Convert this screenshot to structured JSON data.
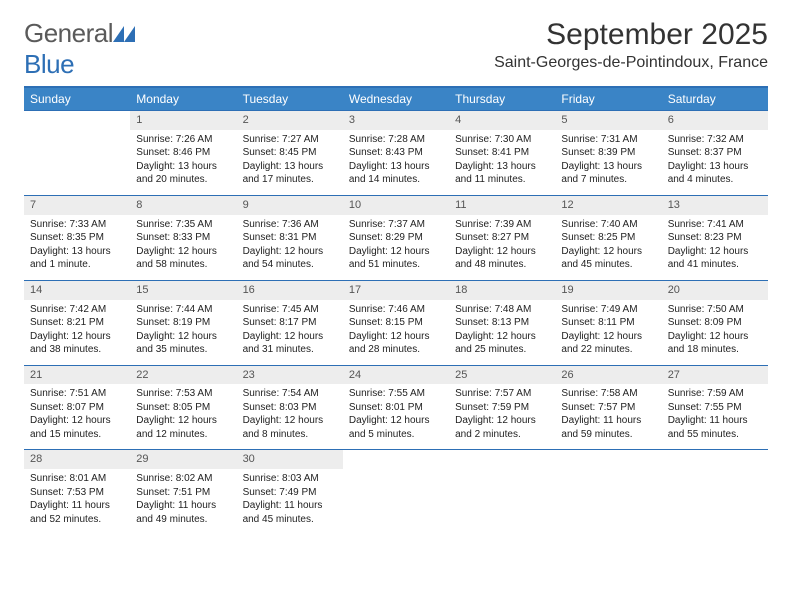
{
  "brand": {
    "part1": "General",
    "part2": "Blue"
  },
  "title": "September 2025",
  "location": "Saint-Georges-de-Pointindoux, France",
  "colors": {
    "accent": "#3a84c6",
    "accent_border": "#2d6fb5",
    "header_text": "#ffffff",
    "daynum_bg": "#ededed",
    "text": "#222222",
    "logo_gray": "#5a5a5a"
  },
  "weekdays": [
    "Sunday",
    "Monday",
    "Tuesday",
    "Wednesday",
    "Thursday",
    "Friday",
    "Saturday"
  ],
  "weeks": [
    [
      null,
      {
        "n": "1",
        "sr": "Sunrise: 7:26 AM",
        "ss": "Sunset: 8:46 PM",
        "d1": "Daylight: 13 hours",
        "d2": "and 20 minutes."
      },
      {
        "n": "2",
        "sr": "Sunrise: 7:27 AM",
        "ss": "Sunset: 8:45 PM",
        "d1": "Daylight: 13 hours",
        "d2": "and 17 minutes."
      },
      {
        "n": "3",
        "sr": "Sunrise: 7:28 AM",
        "ss": "Sunset: 8:43 PM",
        "d1": "Daylight: 13 hours",
        "d2": "and 14 minutes."
      },
      {
        "n": "4",
        "sr": "Sunrise: 7:30 AM",
        "ss": "Sunset: 8:41 PM",
        "d1": "Daylight: 13 hours",
        "d2": "and 11 minutes."
      },
      {
        "n": "5",
        "sr": "Sunrise: 7:31 AM",
        "ss": "Sunset: 8:39 PM",
        "d1": "Daylight: 13 hours",
        "d2": "and 7 minutes."
      },
      {
        "n": "6",
        "sr": "Sunrise: 7:32 AM",
        "ss": "Sunset: 8:37 PM",
        "d1": "Daylight: 13 hours",
        "d2": "and 4 minutes."
      }
    ],
    [
      {
        "n": "7",
        "sr": "Sunrise: 7:33 AM",
        "ss": "Sunset: 8:35 PM",
        "d1": "Daylight: 13 hours",
        "d2": "and 1 minute."
      },
      {
        "n": "8",
        "sr": "Sunrise: 7:35 AM",
        "ss": "Sunset: 8:33 PM",
        "d1": "Daylight: 12 hours",
        "d2": "and 58 minutes."
      },
      {
        "n": "9",
        "sr": "Sunrise: 7:36 AM",
        "ss": "Sunset: 8:31 PM",
        "d1": "Daylight: 12 hours",
        "d2": "and 54 minutes."
      },
      {
        "n": "10",
        "sr": "Sunrise: 7:37 AM",
        "ss": "Sunset: 8:29 PM",
        "d1": "Daylight: 12 hours",
        "d2": "and 51 minutes."
      },
      {
        "n": "11",
        "sr": "Sunrise: 7:39 AM",
        "ss": "Sunset: 8:27 PM",
        "d1": "Daylight: 12 hours",
        "d2": "and 48 minutes."
      },
      {
        "n": "12",
        "sr": "Sunrise: 7:40 AM",
        "ss": "Sunset: 8:25 PM",
        "d1": "Daylight: 12 hours",
        "d2": "and 45 minutes."
      },
      {
        "n": "13",
        "sr": "Sunrise: 7:41 AM",
        "ss": "Sunset: 8:23 PM",
        "d1": "Daylight: 12 hours",
        "d2": "and 41 minutes."
      }
    ],
    [
      {
        "n": "14",
        "sr": "Sunrise: 7:42 AM",
        "ss": "Sunset: 8:21 PM",
        "d1": "Daylight: 12 hours",
        "d2": "and 38 minutes."
      },
      {
        "n": "15",
        "sr": "Sunrise: 7:44 AM",
        "ss": "Sunset: 8:19 PM",
        "d1": "Daylight: 12 hours",
        "d2": "and 35 minutes."
      },
      {
        "n": "16",
        "sr": "Sunrise: 7:45 AM",
        "ss": "Sunset: 8:17 PM",
        "d1": "Daylight: 12 hours",
        "d2": "and 31 minutes."
      },
      {
        "n": "17",
        "sr": "Sunrise: 7:46 AM",
        "ss": "Sunset: 8:15 PM",
        "d1": "Daylight: 12 hours",
        "d2": "and 28 minutes."
      },
      {
        "n": "18",
        "sr": "Sunrise: 7:48 AM",
        "ss": "Sunset: 8:13 PM",
        "d1": "Daylight: 12 hours",
        "d2": "and 25 minutes."
      },
      {
        "n": "19",
        "sr": "Sunrise: 7:49 AM",
        "ss": "Sunset: 8:11 PM",
        "d1": "Daylight: 12 hours",
        "d2": "and 22 minutes."
      },
      {
        "n": "20",
        "sr": "Sunrise: 7:50 AM",
        "ss": "Sunset: 8:09 PM",
        "d1": "Daylight: 12 hours",
        "d2": "and 18 minutes."
      }
    ],
    [
      {
        "n": "21",
        "sr": "Sunrise: 7:51 AM",
        "ss": "Sunset: 8:07 PM",
        "d1": "Daylight: 12 hours",
        "d2": "and 15 minutes."
      },
      {
        "n": "22",
        "sr": "Sunrise: 7:53 AM",
        "ss": "Sunset: 8:05 PM",
        "d1": "Daylight: 12 hours",
        "d2": "and 12 minutes."
      },
      {
        "n": "23",
        "sr": "Sunrise: 7:54 AM",
        "ss": "Sunset: 8:03 PM",
        "d1": "Daylight: 12 hours",
        "d2": "and 8 minutes."
      },
      {
        "n": "24",
        "sr": "Sunrise: 7:55 AM",
        "ss": "Sunset: 8:01 PM",
        "d1": "Daylight: 12 hours",
        "d2": "and 5 minutes."
      },
      {
        "n": "25",
        "sr": "Sunrise: 7:57 AM",
        "ss": "Sunset: 7:59 PM",
        "d1": "Daylight: 12 hours",
        "d2": "and 2 minutes."
      },
      {
        "n": "26",
        "sr": "Sunrise: 7:58 AM",
        "ss": "Sunset: 7:57 PM",
        "d1": "Daylight: 11 hours",
        "d2": "and 59 minutes."
      },
      {
        "n": "27",
        "sr": "Sunrise: 7:59 AM",
        "ss": "Sunset: 7:55 PM",
        "d1": "Daylight: 11 hours",
        "d2": "and 55 minutes."
      }
    ],
    [
      {
        "n": "28",
        "sr": "Sunrise: 8:01 AM",
        "ss": "Sunset: 7:53 PM",
        "d1": "Daylight: 11 hours",
        "d2": "and 52 minutes."
      },
      {
        "n": "29",
        "sr": "Sunrise: 8:02 AM",
        "ss": "Sunset: 7:51 PM",
        "d1": "Daylight: 11 hours",
        "d2": "and 49 minutes."
      },
      {
        "n": "30",
        "sr": "Sunrise: 8:03 AM",
        "ss": "Sunset: 7:49 PM",
        "d1": "Daylight: 11 hours",
        "d2": "and 45 minutes."
      },
      null,
      null,
      null,
      null
    ]
  ]
}
